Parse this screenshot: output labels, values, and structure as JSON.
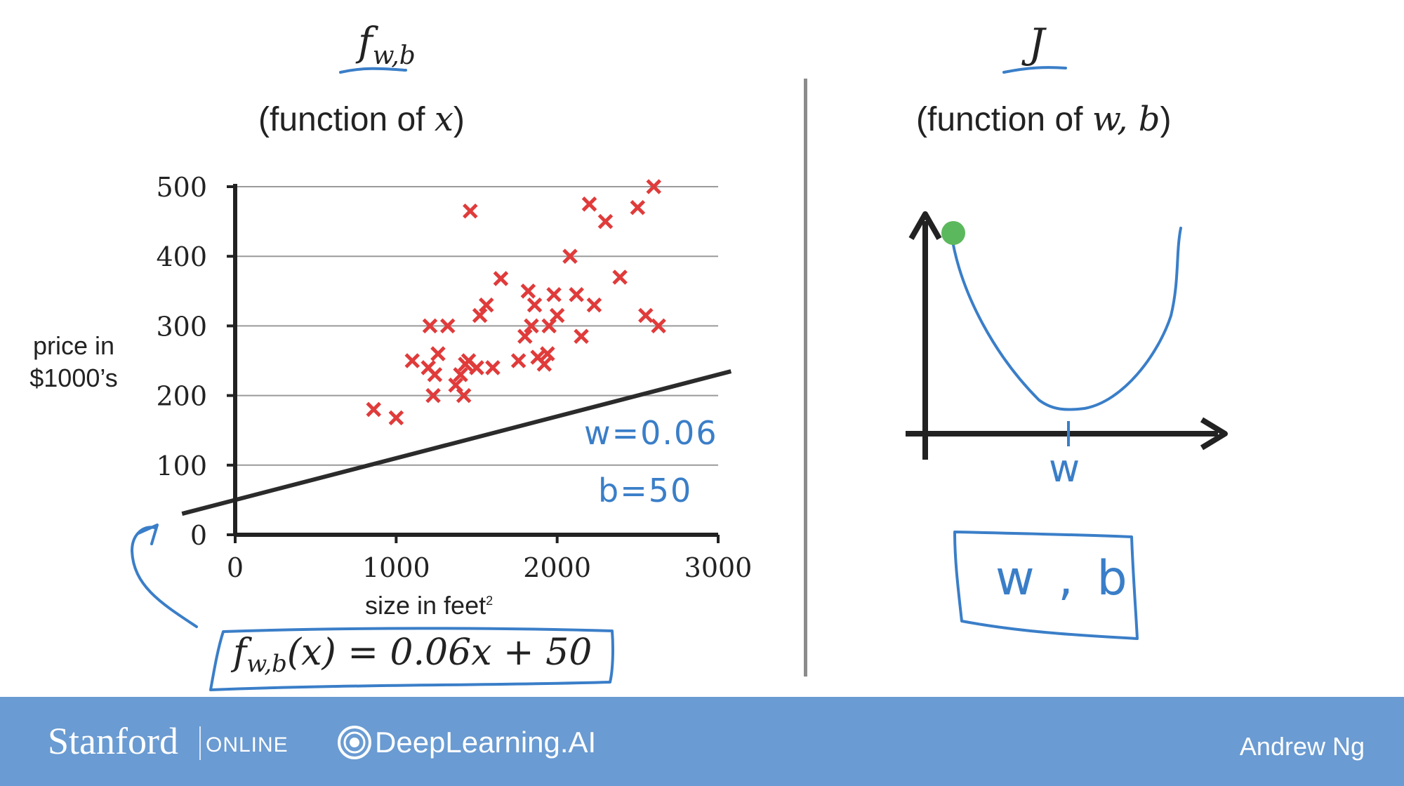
{
  "left_panel": {
    "title_f": "f",
    "title_sub": "w,b",
    "subtitle_prefix": "(function of ",
    "subtitle_var": "x",
    "subtitle_suffix": ")",
    "y_axis_label_line1": "price in",
    "y_axis_label_line2": "$1000’s",
    "x_axis_label": "size in feet",
    "x_axis_label_sup": "2",
    "x_ticks": [
      "0",
      "1000",
      "2000",
      "3000"
    ],
    "y_ticks": [
      "0",
      "100",
      "200",
      "300",
      "400",
      "500"
    ],
    "annotation_w": "w=0.06",
    "annotation_b": "b=50",
    "formula_f": "f",
    "formula_sub": "w,b",
    "formula_rest": "(x) = 0.06x + 50"
  },
  "right_panel": {
    "title": "J",
    "subtitle_prefix": "(function of ",
    "subtitle_var": "w, b",
    "subtitle_suffix": ")",
    "axis_label": "w",
    "box_label": "w , b"
  },
  "colors": {
    "marker": "#e03b3b",
    "ink": "#3a7ec8",
    "point": "#5cb85c",
    "footer": "#6a9bd2"
  },
  "chart_data": {
    "type": "scatter",
    "xlim": [
      0,
      3000
    ],
    "ylim": [
      0,
      500
    ],
    "grid": true,
    "points": [
      [
        860,
        180
      ],
      [
        1000,
        168
      ],
      [
        1100,
        250
      ],
      [
        1200,
        240
      ],
      [
        1210,
        300
      ],
      [
        1230,
        200
      ],
      [
        1240,
        230
      ],
      [
        1260,
        260
      ],
      [
        1320,
        300
      ],
      [
        1370,
        215
      ],
      [
        1400,
        230
      ],
      [
        1420,
        200
      ],
      [
        1430,
        245
      ],
      [
        1450,
        250
      ],
      [
        1460,
        465
      ],
      [
        1500,
        240
      ],
      [
        1520,
        315
      ],
      [
        1560,
        330
      ],
      [
        1600,
        240
      ],
      [
        1650,
        368
      ],
      [
        1760,
        250
      ],
      [
        1800,
        285
      ],
      [
        1820,
        350
      ],
      [
        1840,
        300
      ],
      [
        1860,
        330
      ],
      [
        1880,
        255
      ],
      [
        1920,
        245
      ],
      [
        1940,
        260
      ],
      [
        1950,
        300
      ],
      [
        1980,
        345
      ],
      [
        2000,
        315
      ],
      [
        2080,
        400
      ],
      [
        2120,
        345
      ],
      [
        2150,
        285
      ],
      [
        2200,
        475
      ],
      [
        2230,
        330
      ],
      [
        2300,
        450
      ],
      [
        2390,
        370
      ],
      [
        2500,
        470
      ],
      [
        2550,
        315
      ],
      [
        2600,
        500
      ],
      [
        2630,
        300
      ]
    ],
    "line": {
      "w": 0.06,
      "b": 50,
      "x_range": [
        -330,
        3080
      ]
    }
  }
}
